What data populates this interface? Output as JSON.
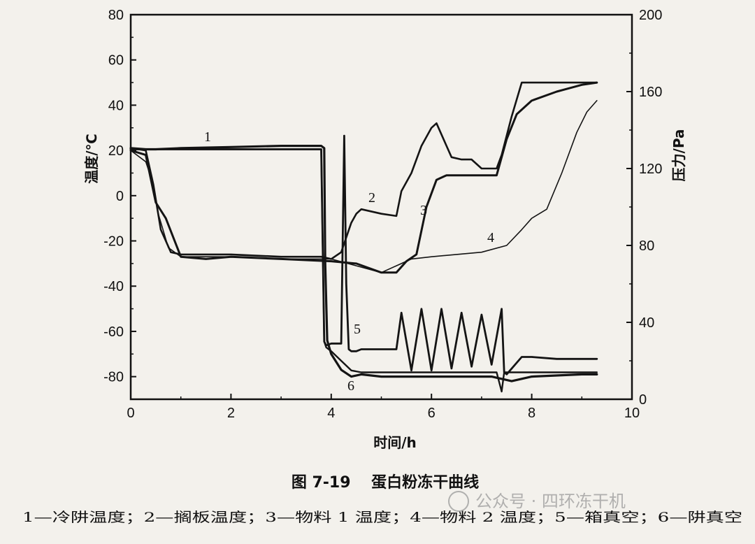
{
  "caption": "图 7-19　 蛋白粉冻干曲线",
  "legend_line": "1—冷阱温度；2—搁板温度；3—物料 1 温度；4—物料 2 温度；5—箱真空；6—阱真空",
  "watermark": "公众号 · 四环冻干机",
  "chart_data": {
    "type": "line",
    "title": "蛋白粉冻干曲线",
    "xlabel": "时间/h",
    "ylabel": "温度/℃",
    "y2label": "压力/Pa",
    "xlim": [
      0,
      10
    ],
    "ylim": [
      -90,
      80
    ],
    "y2lim": [
      0,
      200
    ],
    "x_ticks": [
      "0",
      "2",
      "4",
      "6",
      "8",
      "10"
    ],
    "y_ticks": [
      "80",
      "60",
      "40",
      "20",
      "0",
      "-20",
      "-40",
      "-60",
      "-80"
    ],
    "y2_ticks": [
      "200",
      "160",
      "120",
      "80",
      "40",
      "0"
    ],
    "grid": false,
    "series": [
      {
        "name": "1",
        "description": "冷阱温度",
        "axis": "left",
        "x": [
          0,
          0.3,
          0.5,
          1,
          2,
          3,
          3.8,
          3.86,
          3.88,
          3.92,
          4.0,
          4.2,
          4.4,
          4.6,
          5,
          6,
          7,
          7.2,
          7.6,
          8,
          9,
          9.3
        ],
        "y": [
          21,
          20.5,
          20.5,
          21,
          21.5,
          22,
          22,
          21,
          -30,
          -64,
          -70,
          -77,
          -80,
          -79,
          -80,
          -80,
          -80,
          -80,
          -82,
          -80,
          -79,
          -79
        ]
      },
      {
        "name": "2",
        "description": "搁板温度",
        "axis": "left",
        "x": [
          0,
          0.3,
          0.45,
          0.6,
          0.8,
          1.0,
          2,
          3,
          3.8,
          4.0,
          4.2,
          4.4,
          4.5,
          4.6,
          5,
          5.3,
          5.4,
          5.6,
          5.8,
          6.0,
          6.1,
          6.3,
          6.4,
          6.6,
          6.8,
          7.0,
          7.3,
          7.4,
          7.6,
          7.8,
          8,
          8.5,
          9,
          9.3
        ],
        "y": [
          21,
          20,
          5,
          -15,
          -25,
          -26,
          -26,
          -27,
          -27,
          -28,
          -25,
          -12,
          -8,
          -6,
          -8,
          -9,
          2,
          10,
          22,
          30,
          32,
          22,
          17,
          16,
          16,
          12,
          12,
          18,
          35,
          50,
          50,
          50,
          50,
          50
        ]
      },
      {
        "name": "3",
        "description": "物料 1 温度",
        "axis": "left",
        "x": [
          0,
          0.3,
          0.5,
          0.7,
          1.0,
          1.5,
          2,
          3,
          4,
          4.5,
          5,
          5.3,
          5.5,
          5.7,
          5.9,
          6.1,
          6.3,
          6.6,
          7.0,
          7.3,
          7.5,
          7.7,
          8,
          8.5,
          9,
          9.3
        ],
        "y": [
          20,
          18,
          -3,
          -10,
          -27,
          -28,
          -27,
          -28,
          -29,
          -30,
          -34,
          -34,
          -29,
          -26,
          -5,
          7,
          9,
          9,
          9,
          9,
          25,
          36,
          42,
          46,
          49,
          50
        ]
      },
      {
        "name": "4",
        "description": "物料 2 温度",
        "axis": "left",
        "x": [
          0,
          0.3,
          0.45,
          0.55,
          0.75,
          1.0,
          2,
          3,
          4,
          4.5,
          5,
          5.3,
          5.6,
          6,
          6.5,
          7,
          7.5,
          7.8,
          8,
          8.3,
          8.6,
          8.9,
          9.1,
          9.3
        ],
        "y": [
          20,
          15,
          5,
          -8,
          -23,
          -27,
          -27,
          -28,
          -28,
          -31,
          -34,
          -31,
          -28,
          -27,
          -26,
          -25,
          -22,
          -15,
          -10,
          -6,
          10,
          28,
          37,
          42
        ]
      },
      {
        "name": "5",
        "description": "箱真空",
        "axis": "right",
        "x": [
          0,
          3.8,
          3.86,
          3.9,
          4.0,
          4.2,
          4.26,
          4.3,
          4.35,
          4.4,
          4.5,
          4.6,
          4.8,
          5,
          5.3,
          5.4,
          5.6,
          5.8,
          6,
          6.2,
          6.4,
          6.6,
          6.8,
          7,
          7.2,
          7.4,
          7.45,
          7.5,
          7.8,
          8,
          8.5,
          9,
          9.3
        ],
        "y": [
          130,
          130,
          30,
          28,
          29,
          29,
          137,
          60,
          26,
          25,
          25,
          26,
          26,
          26,
          26,
          45,
          15,
          47,
          15,
          47,
          16,
          45,
          17,
          44,
          18,
          47,
          14,
          13,
          22,
          22,
          21,
          21,
          21
        ]
      },
      {
        "name": "6",
        "description": "阱真空",
        "axis": "right",
        "x": [
          0,
          3.8,
          3.86,
          3.9,
          4.0,
          4.2,
          4.4,
          4.6,
          5,
          6,
          7,
          7.3,
          7.4,
          7.45,
          7.5,
          8,
          9,
          9.3
        ],
        "y": [
          130,
          130,
          30,
          27,
          25,
          20,
          15,
          14,
          14,
          14,
          14,
          14,
          4,
          14,
          14,
          14,
          14,
          14
        ]
      }
    ]
  }
}
